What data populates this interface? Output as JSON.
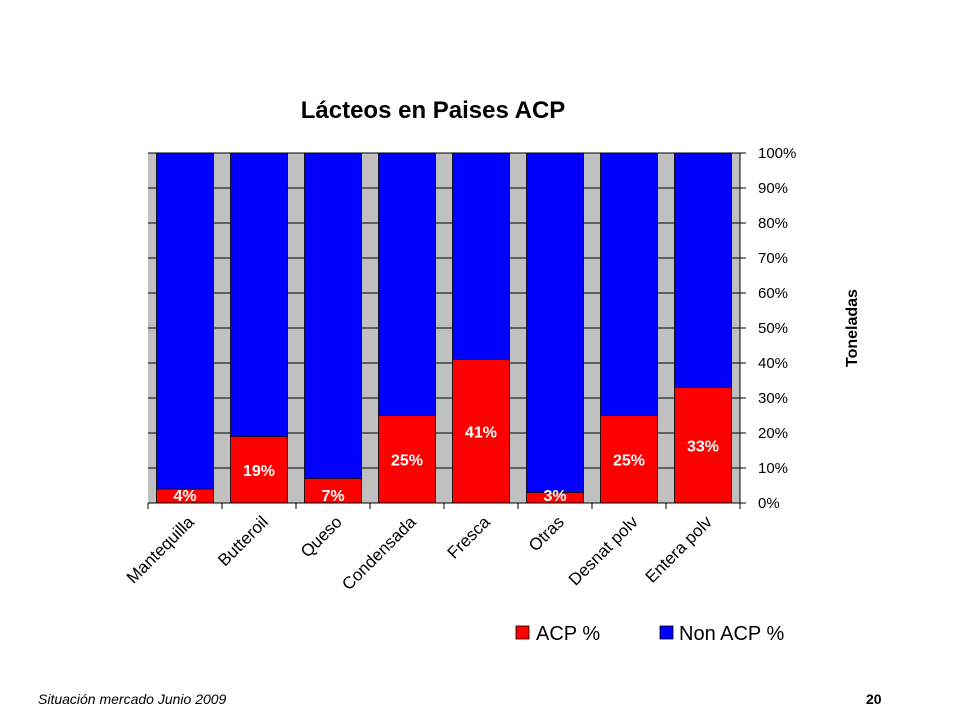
{
  "chart_data": {
    "type": "bar",
    "stacked": true,
    "normalized": true,
    "title": "Lácteos en Paises ACP",
    "ylabel": "Toneladas",
    "xlabel": "",
    "ylim": [
      0,
      100
    ],
    "yticks": [
      "0%",
      "10%",
      "20%",
      "30%",
      "40%",
      "50%",
      "60%",
      "70%",
      "80%",
      "90%",
      "100%"
    ],
    "y_axis_side": "right",
    "grid": true,
    "plot_background": "#c0c0c0",
    "categories": [
      "Mantequilla",
      "Butteroil",
      "Queso",
      "Condensada",
      "Fresca",
      "Otras",
      "Desnat polv",
      "Entera polv"
    ],
    "series": [
      {
        "name": "ACP %",
        "color": "#ff0000",
        "values": [
          4,
          19,
          7,
          25,
          41,
          3,
          25,
          33
        ]
      },
      {
        "name": "Non ACP %",
        "color": "#0000ff",
        "values": [
          96,
          81,
          93,
          75,
          59,
          97,
          75,
          67
        ]
      }
    ],
    "data_labels": [
      "4%",
      "19%",
      "7%",
      "25%",
      "41%",
      "3%",
      "25%",
      "33%"
    ],
    "legend_position": "bottom"
  },
  "footer": {
    "left_text": "Situación mercado Junio 2009",
    "page_number": "20"
  }
}
